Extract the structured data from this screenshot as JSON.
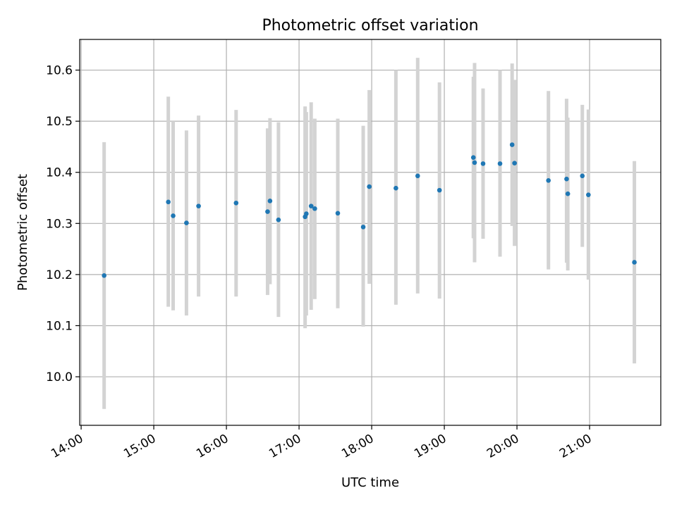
{
  "chart_data": {
    "type": "scatter",
    "title": "Photometric offset variation",
    "xlabel": "UTC time",
    "ylabel": "Photometric offset",
    "xlim_hours": [
      13.98,
      21.98
    ],
    "ylim": [
      9.905,
      10.66
    ],
    "x_ticks": [
      "14:00",
      "15:00",
      "16:00",
      "17:00",
      "18:00",
      "19:00",
      "20:00",
      "21:00"
    ],
    "y_ticks": [
      "10.0",
      "10.1",
      "10.2",
      "10.3",
      "10.4",
      "10.5",
      "10.6"
    ],
    "grid": true,
    "colors": {
      "point": "#1f77b4",
      "errorbar": "#d3d3d3"
    },
    "points": [
      {
        "time": "14:19",
        "y": 10.198,
        "err_low": 9.937,
        "err_high": 10.459
      },
      {
        "time": "15:12",
        "y": 10.342,
        "err_low": 10.137,
        "err_high": 10.548
      },
      {
        "time": "15:16",
        "y": 10.315,
        "err_low": 10.13,
        "err_high": 10.5
      },
      {
        "time": "15:27",
        "y": 10.301,
        "err_low": 10.12,
        "err_high": 10.482
      },
      {
        "time": "15:37",
        "y": 10.334,
        "err_low": 10.157,
        "err_high": 10.511
      },
      {
        "time": "16:08",
        "y": 10.34,
        "err_low": 10.157,
        "err_high": 10.522
      },
      {
        "time": "16:34",
        "y": 10.323,
        "err_low": 10.16,
        "err_high": 10.486
      },
      {
        "time": "16:36",
        "y": 10.344,
        "err_low": 10.181,
        "err_high": 10.506
      },
      {
        "time": "16:43",
        "y": 10.307,
        "err_low": 10.117,
        "err_high": 10.498
      },
      {
        "time": "17:05",
        "y": 10.313,
        "err_low": 10.095,
        "err_high": 10.529
      },
      {
        "time": "17:06",
        "y": 10.319,
        "err_low": 10.12,
        "err_high": 10.518
      },
      {
        "time": "17:10",
        "y": 10.334,
        "err_low": 10.131,
        "err_high": 10.537
      },
      {
        "time": "17:13",
        "y": 10.329,
        "err_low": 10.152,
        "err_high": 10.505
      },
      {
        "time": "17:32",
        "y": 10.32,
        "err_low": 10.134,
        "err_high": 10.505
      },
      {
        "time": "17:53",
        "y": 10.293,
        "err_low": 10.098,
        "err_high": 10.491
      },
      {
        "time": "17:58",
        "y": 10.372,
        "err_low": 10.182,
        "err_high": 10.561
      },
      {
        "time": "18:20",
        "y": 10.369,
        "err_low": 10.141,
        "err_high": 10.6
      },
      {
        "time": "18:38",
        "y": 10.393,
        "err_low": 10.163,
        "err_high": 10.624
      },
      {
        "time": "18:56",
        "y": 10.365,
        "err_low": 10.153,
        "err_high": 10.576
      },
      {
        "time": "19:24",
        "y": 10.429,
        "err_low": 10.271,
        "err_high": 10.587
      },
      {
        "time": "19:25",
        "y": 10.419,
        "err_low": 10.224,
        "err_high": 10.614
      },
      {
        "time": "19:32",
        "y": 10.417,
        "err_low": 10.27,
        "err_high": 10.564
      },
      {
        "time": "19:46",
        "y": 10.417,
        "err_low": 10.235,
        "err_high": 10.6
      },
      {
        "time": "19:56",
        "y": 10.454,
        "err_low": 10.295,
        "err_high": 10.613
      },
      {
        "time": "19:58",
        "y": 10.418,
        "err_low": 10.256,
        "err_high": 10.581
      },
      {
        "time": "20:26",
        "y": 10.384,
        "err_low": 10.21,
        "err_high": 10.559
      },
      {
        "time": "20:41",
        "y": 10.387,
        "err_low": 10.223,
        "err_high": 10.544
      },
      {
        "time": "20:42",
        "y": 10.358,
        "err_low": 10.208,
        "err_high": 10.507
      },
      {
        "time": "20:54",
        "y": 10.393,
        "err_low": 10.254,
        "err_high": 10.532
      },
      {
        "time": "20:59",
        "y": 10.356,
        "err_low": 10.19,
        "err_high": 10.523
      },
      {
        "time": "21:37",
        "y": 10.224,
        "err_low": 10.026,
        "err_high": 10.422
      }
    ]
  }
}
